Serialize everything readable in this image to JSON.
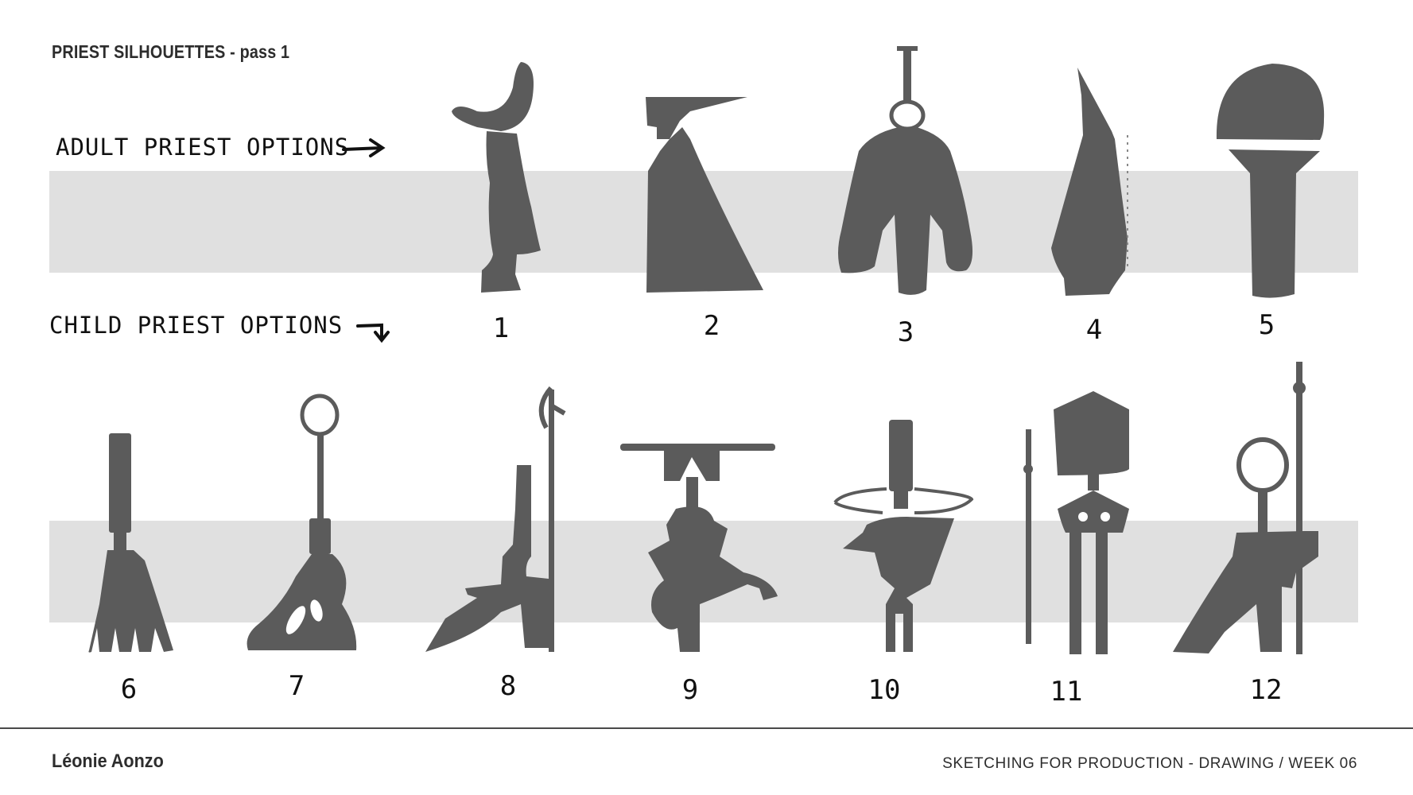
{
  "header": {
    "title": "PRIEST SILHOUETTES - pass 1"
  },
  "rows": {
    "adult_label": "ADULT PRIEST OPTIONS",
    "child_label": "CHILD PRIEST OPTIONS"
  },
  "figure_numbers": [
    "1",
    "2",
    "3",
    "4",
    "5",
    "6",
    "7",
    "8",
    "9",
    "10",
    "11",
    "12"
  ],
  "footer": {
    "author": "Léonie Aonzo",
    "course": "SKETCHING FOR PRODUCTION - DRAWING / WEEK 06"
  },
  "colors": {
    "silhouette": "#5b5b5b",
    "band": "#e0e0e0",
    "ink": "#111111"
  }
}
